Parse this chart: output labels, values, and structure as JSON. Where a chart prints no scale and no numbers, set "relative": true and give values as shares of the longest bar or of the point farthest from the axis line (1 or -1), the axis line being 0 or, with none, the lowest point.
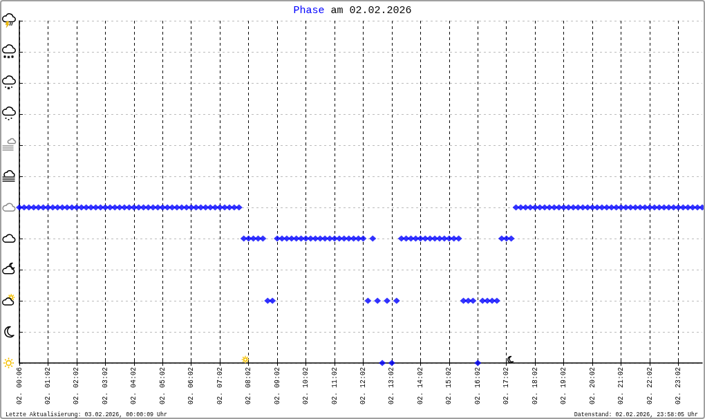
{
  "chart_data": {
    "type": "scatter",
    "title": "Phase am 02.02.2026",
    "relative": true,
    "marker": "diamond",
    "color": "#0000ff",
    "grid": true,
    "categories": [
      "02. 00:06",
      null,
      null,
      null,
      null,
      null,
      "02. 01:02",
      null,
      null,
      null,
      null,
      null,
      "02. 02:02",
      null,
      null,
      null,
      null,
      null,
      "02. 03:02",
      null,
      null,
      null,
      null,
      null,
      "02. 04:02",
      null,
      null,
      null,
      null,
      null,
      "02. 05:02",
      null,
      null,
      null,
      null,
      null,
      "02. 06:02",
      null,
      null,
      null,
      null,
      null,
      "02. 07:02",
      null,
      null,
      null,
      null,
      null,
      "02. 08:02",
      null,
      null,
      null,
      null,
      null,
      "02. 09:02",
      null,
      null,
      null,
      null,
      null,
      "02. 10:02",
      null,
      null,
      null,
      null,
      null,
      "02. 11:02",
      null,
      null,
      null,
      null,
      null,
      "02. 12:02",
      null,
      null,
      null,
      null,
      null,
      "02. 13:02",
      null,
      null,
      null,
      null,
      null,
      "02. 14:02",
      null,
      null,
      null,
      null,
      null,
      "02. 15:02",
      null,
      null,
      null,
      null,
      null,
      "02. 16:02",
      null,
      null,
      null,
      null,
      null,
      "02. 17:02",
      null,
      null,
      null,
      null,
      null,
      "02. 18:02",
      null,
      null,
      null,
      null,
      null,
      "02. 19:02",
      null,
      null,
      null,
      null,
      null,
      "02. 20:02",
      null,
      null,
      null,
      null,
      null,
      "02. 21:02",
      null,
      null,
      null,
      null,
      null,
      "02. 22:02",
      null,
      null,
      null,
      null,
      null,
      "02. 23:02",
      null,
      null,
      null,
      null,
      null
    ],
    "values": [
      1,
      1,
      1,
      1,
      1,
      1,
      1,
      1,
      1,
      1,
      1,
      1,
      1,
      1,
      1,
      1,
      1,
      1,
      1,
      1,
      1,
      1,
      1,
      1,
      1,
      1,
      1,
      1,
      1,
      1,
      1,
      1,
      1,
      1,
      1,
      1,
      1,
      1,
      1,
      1,
      1,
      1,
      1,
      1,
      1,
      1,
      1,
      0.8,
      0.8,
      0.8,
      0.8,
      0.8,
      0.4,
      0.4,
      0.8,
      0.8,
      0.8,
      0.8,
      0.8,
      0.8,
      0.8,
      0.8,
      0.8,
      0.8,
      0.8,
      0.8,
      0.8,
      0.8,
      0.8,
      0.8,
      0.8,
      0.8,
      0.8,
      0.4,
      0.8,
      0.4,
      0,
      0.4,
      0,
      0.4,
      0.8,
      0.8,
      0.8,
      0.8,
      0.8,
      0.8,
      0.8,
      0.8,
      0.8,
      0.8,
      0.8,
      0.8,
      0.8,
      0.4,
      0.4,
      0.4,
      0,
      0.4,
      0.4,
      0.4,
      0.4,
      0.8,
      0.8,
      0.8,
      1,
      1,
      1,
      1,
      1,
      1,
      1,
      1,
      1,
      1,
      1,
      1,
      1,
      1,
      1,
      1,
      1,
      1,
      1,
      1,
      1,
      1,
      1,
      1,
      1,
      1,
      1,
      1,
      1,
      1,
      1,
      1,
      1,
      1,
      1,
      1,
      1,
      1,
      1,
      1
    ],
    "annotations": [
      "Letzte Aktualisierung: 03.02.2026, 00:00:09 Uhr",
      "Datenstand: 02.02.2026, 23:58:05 Uhr"
    ]
  }
}
